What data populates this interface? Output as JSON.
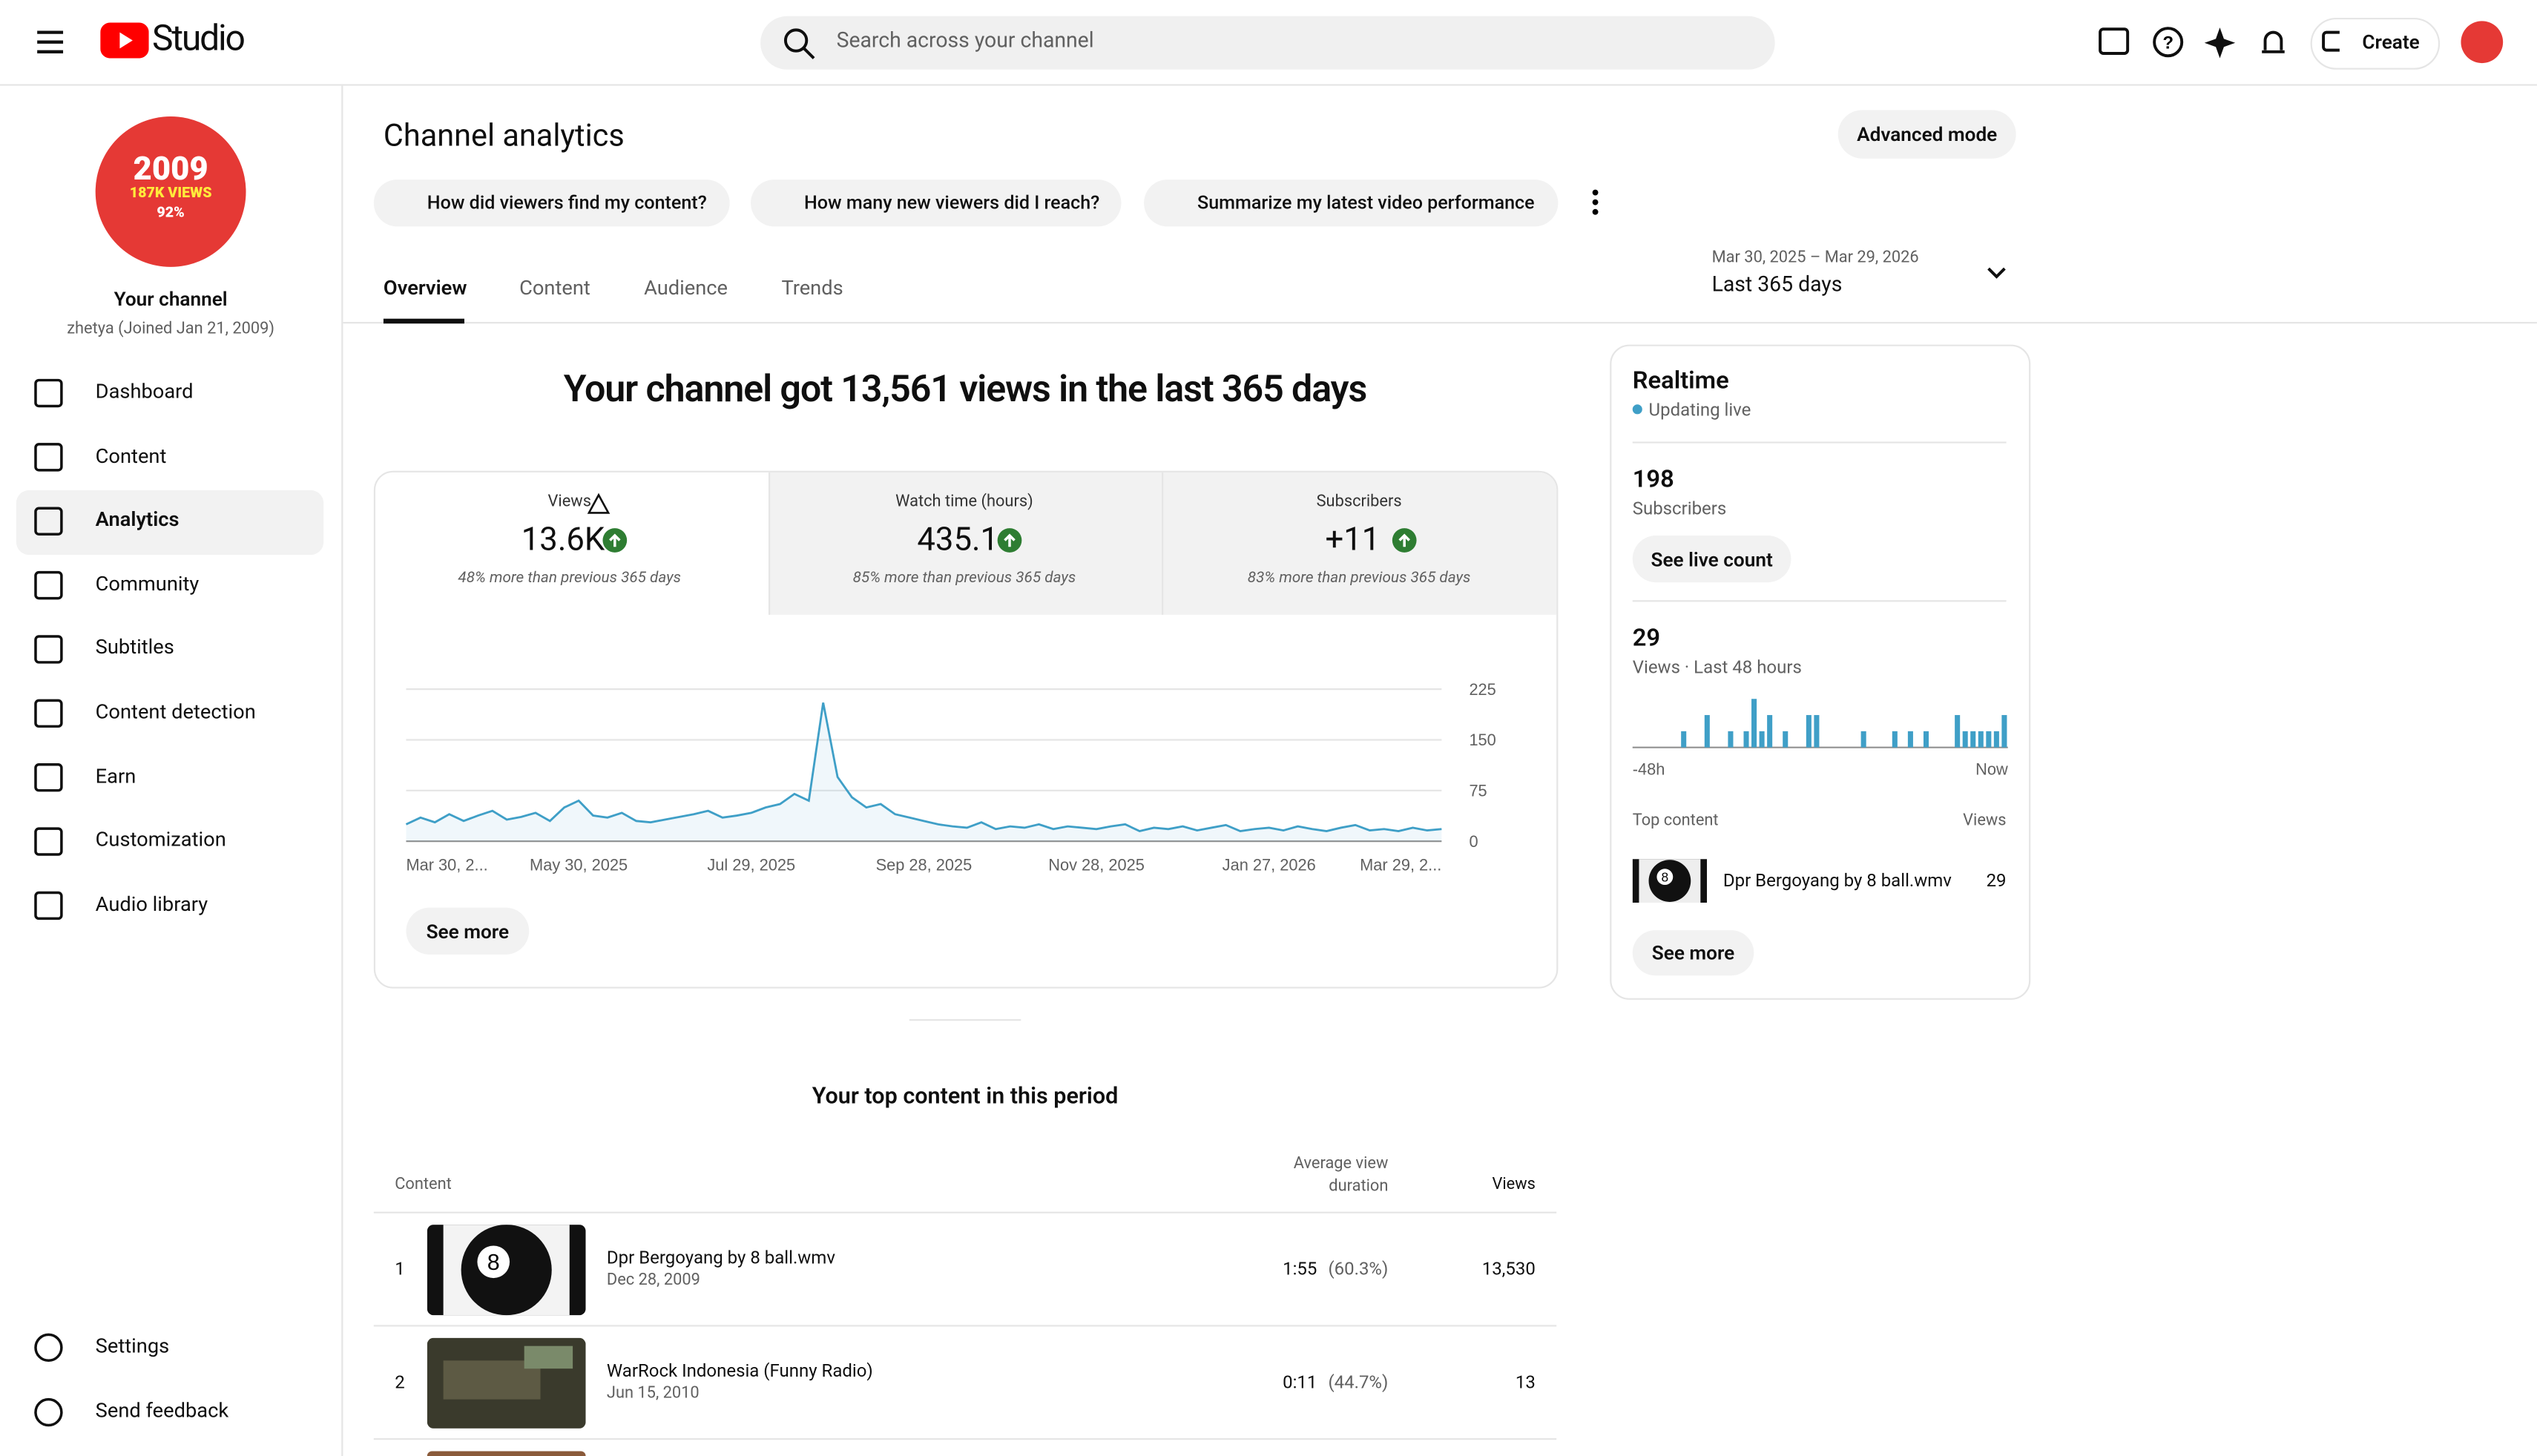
{
  "header": {
    "logo": "Studio",
    "search_placeholder": "Search across your channel",
    "create": "Create"
  },
  "channel": {
    "avatar": [
      "2009",
      "187K VIEWS",
      "92%"
    ],
    "name": "Your channel",
    "handle": "zhetya (Joined Jan 21, 2009)"
  },
  "nav": [
    "Dashboard",
    "Content",
    "Analytics",
    "Community",
    "Subtitles",
    "Content detection",
    "Earn",
    "Customization",
    "Audio library"
  ],
  "nav_bottom": [
    "Settings",
    "Send feedback"
  ],
  "page": {
    "title": "Channel analytics",
    "advanced": "Advanced mode",
    "chips": [
      "How did viewers find my content?",
      "How many new viewers did I reach?",
      "Summarize my latest video performance"
    ],
    "tabs": [
      "Overview",
      "Content",
      "Audience",
      "Trends"
    ],
    "date_range": "Mar 30, 2025 – Mar 29, 2026",
    "period": "Last 365 days"
  },
  "overview": {
    "headline": "Your channel got 13,561 views in the last 365 days",
    "stats": [
      {
        "label": "Views",
        "value": "13.6K",
        "note": "48% more than previous 365 days"
      },
      {
        "label": "Watch time (hours)",
        "value": "435.1",
        "note": "85% more than previous 365 days"
      },
      {
        "label": "Subscribers",
        "value": "+11",
        "note": "83% more than previous 365 days"
      }
    ],
    "see_more": "See more"
  },
  "realtime": {
    "title": "Realtime",
    "status": "Updating live",
    "subscribers": "198",
    "subscribers_label": "Subscribers",
    "see_live": "See live count",
    "views": "29",
    "views_label": "Views · Last 48 hours",
    "top_content": "Top content",
    "views_col": "Views",
    "top_item": {
      "title": "Dpr Bergoyang by 8 ball.wmv",
      "views": "29"
    },
    "see_more": "See more"
  },
  "top_content": {
    "title": "Your top content in this period",
    "columns": [
      "Content",
      "Average view duration",
      "Views"
    ],
    "rows": [
      {
        "rank": 1,
        "title": "Dpr Bergoyang by 8 ball.wmv",
        "date": "Dec 28, 2009",
        "duration": "1:55",
        "percent": "(60.3%)",
        "views": "13,530"
      },
      {
        "rank": 2,
        "title": "WarRock Indonesia (Funny Radio)",
        "date": "Jun 15, 2010",
        "duration": "0:11",
        "percent": "(44.7%)",
        "views": "13"
      }
    ]
  },
  "chart_data": [
    {
      "type": "line",
      "color": "#3f9fc7",
      "grid": true,
      "ylim": [
        0,
        225
      ],
      "yticks": [
        0,
        75,
        150,
        225
      ],
      "x_labels": [
        "Mar 30, 2...",
        "May 30, 2025",
        "Jul 29, 2025",
        "Sep 28, 2025",
        "Nov 28, 2025",
        "Jan 27, 2026",
        "Mar 29, 2..."
      ],
      "values": [
        25,
        35,
        28,
        40,
        30,
        38,
        45,
        32,
        36,
        42,
        30,
        50,
        60,
        38,
        35,
        42,
        30,
        28,
        32,
        36,
        40,
        45,
        35,
        38,
        42,
        50,
        55,
        70,
        60,
        205,
        95,
        65,
        50,
        55,
        40,
        35,
        30,
        25,
        22,
        20,
        28,
        18,
        22,
        20,
        25,
        18,
        22,
        20,
        18,
        22,
        25,
        15,
        20,
        18,
        22,
        16,
        20,
        24,
        15,
        18,
        20,
        16,
        22,
        18,
        15,
        20,
        24,
        16,
        18,
        15,
        20,
        16,
        18
      ]
    },
    {
      "type": "bar",
      "color": "#3f9fc7",
      "x_labels": [
        "-48h",
        "Now"
      ],
      "values": [
        0,
        0,
        0,
        0,
        0,
        0,
        1,
        0,
        0,
        2,
        0,
        0,
        1,
        0,
        1,
        3,
        1,
        2,
        0,
        1,
        0,
        0,
        2,
        2,
        0,
        0,
        0,
        0,
        0,
        1,
        0,
        0,
        0,
        1,
        0,
        1,
        0,
        1,
        0,
        0,
        0,
        2,
        1,
        1,
        1,
        1,
        1,
        2
      ]
    }
  ]
}
